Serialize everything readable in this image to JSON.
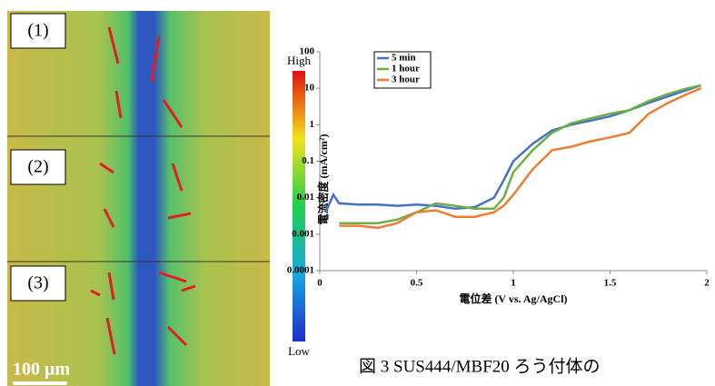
{
  "figure": {
    "panel_labels": [
      "(1)",
      "(2)",
      "(3)"
    ],
    "scale_bar": "100 μm",
    "colorbar": {
      "high": "High",
      "low": "Low"
    },
    "caption": "図 3 SUS444/MBF20 ろう付体の"
  },
  "chart_data": {
    "type": "line",
    "xlabel": "電位差 (V vs. Ag/AgCl)",
    "ylabel": "電流密度 (mA/cm²)",
    "x": [
      0.03,
      0.07,
      0.1,
      0.2,
      0.3,
      0.4,
      0.5,
      0.6,
      0.7,
      0.8,
      0.9,
      0.95,
      1.0,
      1.1,
      1.2,
      1.3,
      1.4,
      1.5,
      1.6,
      1.7,
      1.8,
      1.9,
      1.97
    ],
    "series": [
      {
        "name": "5 min",
        "color": "#4472c4",
        "values": [
          0.004,
          0.012,
          0.007,
          0.0065,
          0.0065,
          0.006,
          0.0065,
          0.006,
          0.005,
          0.0055,
          0.01,
          0.03,
          0.1,
          0.3,
          0.7,
          1.0,
          1.3,
          1.7,
          2.5,
          4,
          6,
          9,
          12
        ]
      },
      {
        "name": "1 hour",
        "color": "#70ad47",
        "values": [
          null,
          null,
          0.002,
          0.002,
          0.002,
          0.0025,
          0.004,
          0.007,
          0.006,
          0.005,
          0.005,
          0.01,
          0.05,
          0.2,
          0.6,
          1.1,
          1.5,
          2,
          2.5,
          4.5,
          7,
          10,
          12
        ]
      },
      {
        "name": "3 hour",
        "color": "#ed7d31",
        "values": [
          null,
          null,
          0.0017,
          0.0017,
          0.0015,
          0.002,
          0.004,
          0.0045,
          0.003,
          0.003,
          0.004,
          0.006,
          0.012,
          0.06,
          0.2,
          0.25,
          0.35,
          0.45,
          0.6,
          2,
          4,
          7,
          10
        ]
      }
    ],
    "xlim": [
      0,
      2
    ],
    "xticks": [
      0,
      0.5,
      1,
      1.5,
      2
    ],
    "ylim": [
      0.0001,
      100
    ],
    "yticks": [
      0.0001,
      0.001,
      0.01,
      0.1,
      1,
      10,
      100
    ],
    "ylog": true,
    "legend": "upper-left"
  }
}
